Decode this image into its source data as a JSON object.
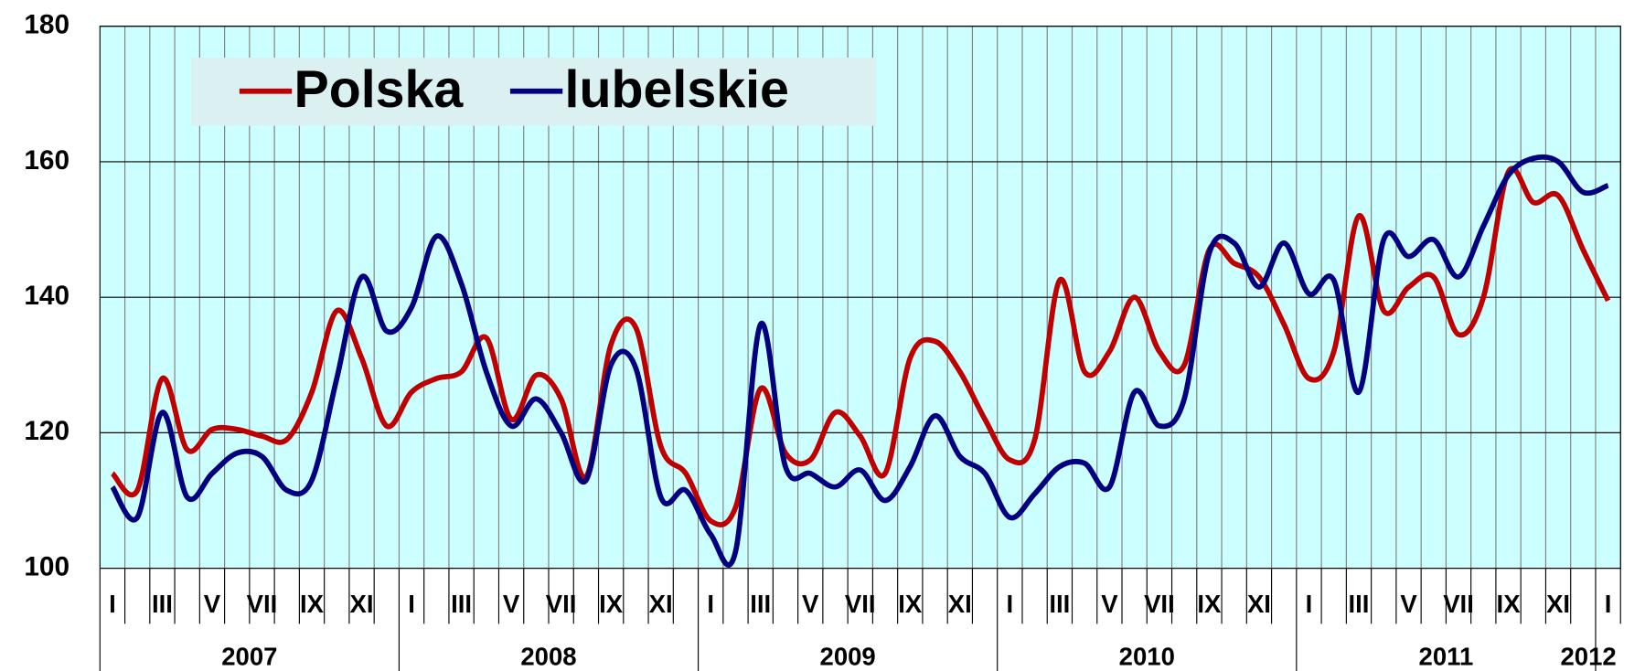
{
  "chart_data": {
    "type": "line",
    "categories": [
      "I",
      null,
      "III",
      null,
      "V",
      null,
      "VII",
      null,
      "IX",
      null,
      "XI",
      null,
      "I",
      null,
      "III",
      null,
      "V",
      null,
      "VII",
      null,
      "IX",
      null,
      "XI",
      null,
      "I",
      null,
      "III",
      null,
      "V",
      null,
      "VII",
      null,
      "IX",
      null,
      "XI",
      null,
      "I",
      null,
      "III",
      null,
      "V",
      null,
      "VII",
      null,
      "IX",
      null,
      "XI",
      null,
      "I",
      null,
      "III",
      null,
      "V",
      null,
      "VII",
      null,
      "IX",
      null,
      "XI",
      null,
      "I"
    ],
    "years": [
      "2007",
      "2008",
      "2009",
      "2010",
      "2011",
      "2012"
    ],
    "series": [
      {
        "name": "Polska",
        "color": "#c00000",
        "values": [
          114,
          111.5,
          128,
          117.5,
          120.5,
          120.5,
          119.5,
          119,
          126,
          138,
          131,
          121,
          126,
          128,
          129,
          134,
          122,
          128.5,
          125,
          113.5,
          133,
          135.5,
          118,
          114,
          107,
          109,
          126.5,
          117,
          116,
          123,
          119.5,
          114,
          131,
          133.5,
          129,
          122,
          116,
          119,
          142.5,
          129,
          132,
          140,
          132,
          130,
          147,
          145,
          143,
          136,
          128,
          132,
          152,
          138,
          141.5,
          143,
          134.5,
          140,
          158.5,
          154,
          155,
          147,
          139.5
        ]
      },
      {
        "name": "lubelskie",
        "color": "#000080",
        "values": [
          112,
          107.5,
          123,
          110.5,
          114,
          117,
          116.5,
          111.5,
          113,
          128,
          143,
          135,
          138.5,
          149,
          142,
          129,
          121,
          125,
          120,
          113,
          130,
          129.5,
          110.5,
          111.5,
          105,
          102.5,
          136,
          115,
          114,
          112,
          114.5,
          110,
          115,
          122.5,
          116.5,
          114,
          107.5,
          111,
          115,
          115.5,
          112,
          126,
          121,
          125,
          146.5,
          148,
          141.5,
          148,
          140.5,
          142.5,
          126,
          148.5,
          146,
          148.5,
          143,
          150.5,
          158,
          160.5,
          160,
          155.5,
          156.5
        ]
      }
    ],
    "ylim": [
      100,
      180
    ],
    "yticks": [
      100,
      120,
      140,
      160,
      180
    ],
    "grid": true,
    "legend": "top-left"
  }
}
